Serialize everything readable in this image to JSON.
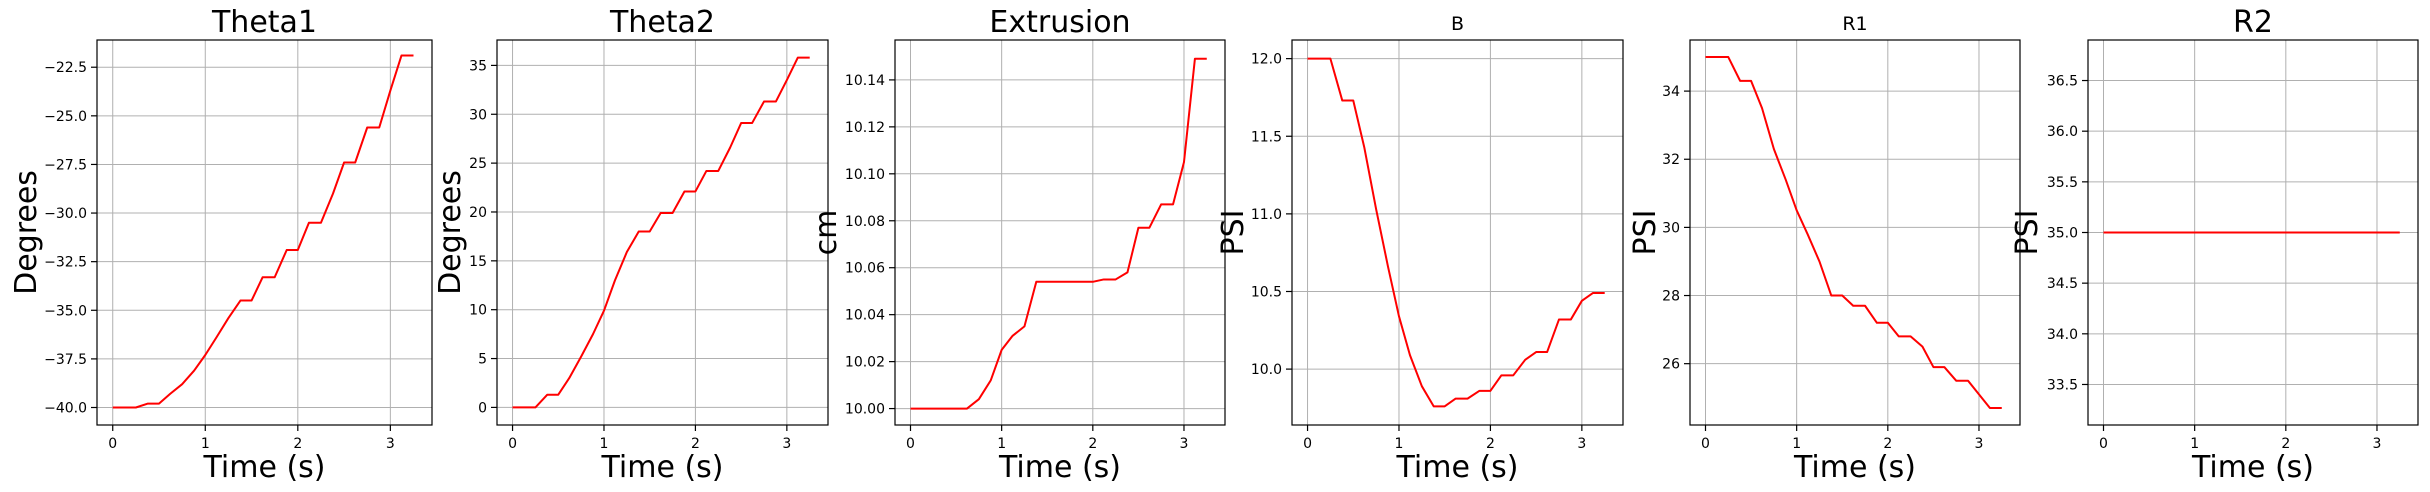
{
  "line_color": "#ff0000",
  "grid_color": "#b0b0b0",
  "chart_data": [
    {
      "type": "line",
      "title": "Theta1",
      "title_size": "large",
      "xlabel": "Time (s)",
      "ylabel": "Degrees",
      "grid": true,
      "xlim": [
        -0.17,
        3.45
      ],
      "ylim": [
        -40.9,
        -21.1
      ],
      "xticks": [
        0,
        1,
        2,
        3
      ],
      "xtick_labels": [
        "0",
        "1",
        "2",
        "3"
      ],
      "yticks": [
        -40.0,
        -37.5,
        -35.0,
        -32.5,
        -30.0,
        -27.5,
        -25.0,
        -22.5
      ],
      "ytick_labels": [
        "−40.0",
        "−37.5",
        "−35.0",
        "−32.5",
        "−30.0",
        "−27.5",
        "−25.0",
        "−22.5"
      ],
      "series": [
        {
          "x": [
            0.0,
            0.25,
            0.38,
            0.5,
            0.62,
            0.75,
            0.88,
            1.0,
            1.12,
            1.25,
            1.38,
            1.5,
            1.62,
            1.75,
            1.88,
            2.0,
            2.12,
            2.25,
            2.38,
            2.5,
            2.62,
            2.75,
            2.88,
            3.0,
            3.12,
            3.25
          ],
          "y": [
            -40.0,
            -40.0,
            -39.8,
            -39.8,
            -39.3,
            -38.8,
            -38.1,
            -37.3,
            -36.4,
            -35.4,
            -34.5,
            -34.5,
            -33.3,
            -33.3,
            -31.9,
            -31.9,
            -30.5,
            -30.5,
            -29.0,
            -27.4,
            -27.4,
            -25.6,
            -25.6,
            -23.7,
            -21.9,
            -21.9
          ]
        }
      ]
    },
    {
      "type": "line",
      "title": "Theta2",
      "title_size": "large",
      "xlabel": "Time (s)",
      "ylabel": "Degrees",
      "grid": true,
      "xlim": [
        -0.17,
        3.45
      ],
      "ylim": [
        -1.8,
        37.6
      ],
      "xticks": [
        0,
        1,
        2,
        3
      ],
      "xtick_labels": [
        "0",
        "1",
        "2",
        "3"
      ],
      "yticks": [
        0,
        5,
        10,
        15,
        20,
        25,
        30,
        35
      ],
      "ytick_labels": [
        "0",
        "5",
        "10",
        "15",
        "20",
        "25",
        "30",
        "35"
      ],
      "series": [
        {
          "x": [
            0.0,
            0.25,
            0.38,
            0.5,
            0.62,
            0.75,
            0.88,
            1.0,
            1.12,
            1.25,
            1.38,
            1.5,
            1.62,
            1.75,
            1.88,
            2.0,
            2.12,
            2.25,
            2.38,
            2.5,
            2.62,
            2.75,
            2.88,
            3.0,
            3.12,
            3.25
          ],
          "y": [
            0.0,
            0.0,
            1.3,
            1.3,
            3.0,
            5.2,
            7.5,
            9.9,
            13.0,
            15.9,
            18.0,
            18.0,
            19.9,
            19.9,
            22.1,
            22.1,
            24.2,
            24.2,
            26.6,
            29.1,
            29.1,
            31.3,
            31.3,
            33.5,
            35.8,
            35.8
          ]
        }
      ]
    },
    {
      "type": "line",
      "title": "Extrusion",
      "title_size": "large",
      "xlabel": "Time (s)",
      "ylabel": "cm",
      "grid": true,
      "xlim": [
        -0.17,
        3.45
      ],
      "ylim": [
        9.993,
        10.157
      ],
      "xticks": [
        0,
        1,
        2,
        3
      ],
      "xtick_labels": [
        "0",
        "1",
        "2",
        "3"
      ],
      "yticks": [
        10.0,
        10.02,
        10.04,
        10.06,
        10.08,
        10.1,
        10.12,
        10.14
      ],
      "ytick_labels": [
        "10.00",
        "10.02",
        "10.04",
        "10.06",
        "10.08",
        "10.10",
        "10.12",
        "10.14"
      ],
      "series": [
        {
          "x": [
            0.0,
            0.25,
            0.38,
            0.5,
            0.62,
            0.75,
            0.88,
            1.0,
            1.12,
            1.25,
            1.38,
            1.5,
            1.62,
            1.75,
            1.88,
            2.0,
            2.12,
            2.25,
            2.38,
            2.5,
            2.62,
            2.75,
            2.88,
            3.0,
            3.12,
            3.25
          ],
          "y": [
            10.0,
            10.0,
            10.0,
            10.0,
            10.0,
            10.004,
            10.012,
            10.025,
            10.031,
            10.035,
            10.054,
            10.054,
            10.054,
            10.054,
            10.054,
            10.054,
            10.055,
            10.055,
            10.058,
            10.077,
            10.077,
            10.087,
            10.087,
            10.105,
            10.149,
            10.149
          ]
        }
      ]
    },
    {
      "type": "line",
      "title": "B",
      "title_size": "small",
      "xlabel": "Time (s)",
      "ylabel": "PSI",
      "grid": true,
      "xlim": [
        -0.17,
        3.45
      ],
      "ylim": [
        9.64,
        12.12
      ],
      "xticks": [
        0,
        1,
        2,
        3
      ],
      "xtick_labels": [
        "0",
        "1",
        "2",
        "3"
      ],
      "yticks": [
        10.0,
        10.5,
        11.0,
        11.5,
        12.0
      ],
      "ytick_labels": [
        "10.0",
        "10.5",
        "11.0",
        "11.5",
        "12.0"
      ],
      "series": [
        {
          "x": [
            0.0,
            0.25,
            0.38,
            0.5,
            0.62,
            0.75,
            0.88,
            1.0,
            1.12,
            1.25,
            1.38,
            1.5,
            1.62,
            1.75,
            1.88,
            2.0,
            2.12,
            2.25,
            2.38,
            2.5,
            2.62,
            2.75,
            2.88,
            3.0,
            3.12,
            3.25
          ],
          "y": [
            12.0,
            12.0,
            11.73,
            11.73,
            11.43,
            11.03,
            10.66,
            10.34,
            10.09,
            9.89,
            9.76,
            9.76,
            9.81,
            9.81,
            9.86,
            9.86,
            9.96,
            9.96,
            10.06,
            10.11,
            10.11,
            10.32,
            10.32,
            10.44,
            10.49,
            10.49
          ]
        }
      ]
    },
    {
      "type": "line",
      "title": "R1",
      "title_size": "small",
      "xlabel": "Time (s)",
      "ylabel": "PSI",
      "grid": true,
      "xlim": [
        -0.17,
        3.45
      ],
      "ylim": [
        24.2,
        35.5
      ],
      "xticks": [
        0,
        1,
        2,
        3
      ],
      "xtick_labels": [
        "0",
        "1",
        "2",
        "3"
      ],
      "yticks": [
        26,
        28,
        30,
        32,
        34
      ],
      "ytick_labels": [
        "26",
        "28",
        "30",
        "32",
        "34"
      ],
      "series": [
        {
          "x": [
            0.0,
            0.25,
            0.38,
            0.5,
            0.62,
            0.75,
            0.88,
            1.0,
            1.12,
            1.25,
            1.38,
            1.5,
            1.62,
            1.75,
            1.88,
            2.0,
            2.12,
            2.25,
            2.38,
            2.5,
            2.62,
            2.75,
            2.88,
            3.0,
            3.12,
            3.25
          ],
          "y": [
            35.0,
            35.0,
            34.3,
            34.3,
            33.5,
            32.3,
            31.4,
            30.5,
            29.8,
            29.0,
            28.0,
            28.0,
            27.7,
            27.7,
            27.2,
            27.2,
            26.8,
            26.8,
            26.5,
            25.9,
            25.9,
            25.5,
            25.5,
            25.1,
            24.7,
            24.7
          ]
        }
      ]
    },
    {
      "type": "line",
      "title": "R2",
      "title_size": "large",
      "xlabel": "Time (s)",
      "ylabel": "PSI",
      "grid": true,
      "xlim": [
        -0.17,
        3.45
      ],
      "ylim": [
        33.1,
        36.9
      ],
      "xticks": [
        0,
        1,
        2,
        3
      ],
      "xtick_labels": [
        "0",
        "1",
        "2",
        "3"
      ],
      "yticks": [
        33.5,
        34.0,
        34.5,
        35.0,
        35.5,
        36.0,
        36.5
      ],
      "ytick_labels": [
        "33.5",
        "34.0",
        "34.5",
        "35.0",
        "35.5",
        "36.0",
        "36.5"
      ],
      "series": [
        {
          "x": [
            0.0,
            3.25
          ],
          "y": [
            35.0,
            35.0
          ]
        }
      ]
    }
  ]
}
